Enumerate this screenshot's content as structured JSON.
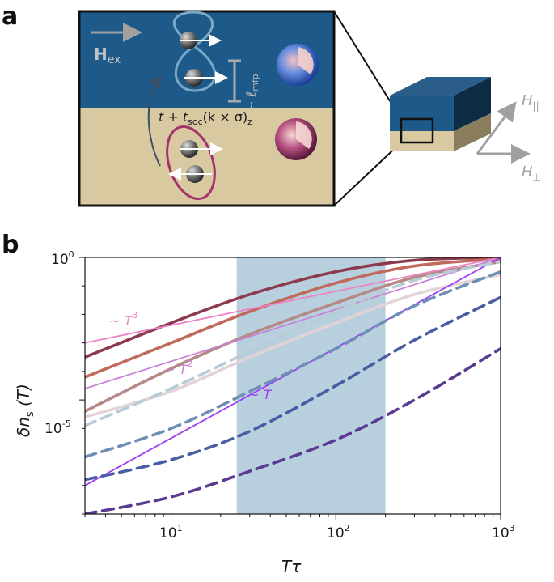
{
  "panel_a": {
    "letter": "a",
    "field_label": "H",
    "field_sub": "ex",
    "mfp_label": "~ ℓ",
    "mfp_sub": "mfp",
    "hop_t": "t + t",
    "hop_sub": "soc",
    "hop_k": "(k × σ)",
    "hop_z": "z",
    "h_par": "H",
    "h_par_sub": "||",
    "h_perp": "H",
    "h_perp_sub": "⊥",
    "colors": {
      "top_layer": "#1d5a8a",
      "bottom_layer": "#d9c9a1",
      "loop_top": "#7aa9c7",
      "loop_bottom": "#a3336b"
    }
  },
  "panel_b": {
    "letter": "b",
    "ylabel_main": "δn",
    "ylabel_sub": "s",
    "ylabel_arg": " (T)",
    "xlabel": "Tτ",
    "xticks": [
      {
        "base": "10",
        "exp": "1"
      },
      {
        "base": "10",
        "exp": "2"
      },
      {
        "base": "10",
        "exp": "3"
      }
    ],
    "yticks": [
      {
        "base": "10",
        "exp": "0"
      },
      {
        "base": "10",
        "exp": "-5"
      }
    ],
    "annotations": [
      {
        "text": "~ T",
        "exp": "3"
      },
      {
        "text": "~ T",
        "exp": "2"
      },
      {
        "text": "~ T",
        "exp": ""
      }
    ]
  },
  "chart_data": {
    "type": "line",
    "x_scale": "log",
    "y_scale": "log",
    "xlim": [
      3,
      1000
    ],
    "ylim_log10": [
      -9,
      0
    ],
    "shaded_region_x": [
      25,
      200
    ],
    "grid": false,
    "series": [
      {
        "style": "solid",
        "color": "#8c3a4e",
        "x": [
          3,
          10,
          30,
          100,
          300,
          1000
        ],
        "y_log10": [
          -3.5,
          -2.3,
          -1.3,
          -0.5,
          -0.1,
          0
        ]
      },
      {
        "style": "solid",
        "color": "#c06a5c",
        "x": [
          3,
          10,
          30,
          100,
          300,
          1000
        ],
        "y_log10": [
          -4.2,
          -3.0,
          -1.9,
          -0.9,
          -0.3,
          -0.05
        ]
      },
      {
        "style": "solid",
        "color": "#b58a86",
        "x": [
          3,
          10,
          30,
          100,
          300,
          1000
        ],
        "y_log10": [
          -5.4,
          -3.9,
          -2.7,
          -1.6,
          -0.7,
          -0.15
        ]
      },
      {
        "style": "solid",
        "color": "#e2d4d6",
        "x": [
          3,
          10,
          30,
          100,
          300,
          1000
        ],
        "y_log10": [
          -5.6,
          -4.7,
          -3.5,
          -2.3,
          -1.3,
          -0.6
        ]
      },
      {
        "style": "solid",
        "color": "#ee82c6",
        "x": [
          3,
          1000
        ],
        "y_log10": [
          -3.0,
          0
        ]
      },
      {
        "style": "solid",
        "color": "#c883d7",
        "x": [
          3,
          1000
        ],
        "y_log10": [
          -4.6,
          0
        ]
      },
      {
        "style": "solid",
        "color": "#9b3ff2",
        "x": [
          3,
          1000
        ],
        "y_log10": [
          -8.0,
          0
        ]
      },
      {
        "style": "dashed",
        "color": "#b9cbd6",
        "x": [
          3,
          10,
          30,
          100,
          300,
          1000
        ],
        "y_log10": [
          -5.9,
          -4.6,
          -3.3,
          -1.9,
          -0.8,
          -0.15
        ]
      },
      {
        "style": "dashed",
        "color": "#6d8fb5",
        "x": [
          3,
          10,
          30,
          100,
          300,
          1000
        ],
        "y_log10": [
          -7.0,
          -6.0,
          -4.7,
          -3.2,
          -1.7,
          -0.5
        ]
      },
      {
        "style": "dashed",
        "color": "#4a5ca3",
        "x": [
          3,
          10,
          30,
          100,
          300,
          1000
        ],
        "y_log10": [
          -7.8,
          -7.1,
          -6.1,
          -4.5,
          -2.9,
          -1.4
        ]
      },
      {
        "style": "dashed",
        "color": "#5b3a94",
        "x": [
          3,
          10,
          30,
          100,
          300,
          1000
        ],
        "y_log10": [
          -9.0,
          -8.4,
          -7.5,
          -6.4,
          -5.0,
          -3.2
        ]
      }
    ]
  }
}
